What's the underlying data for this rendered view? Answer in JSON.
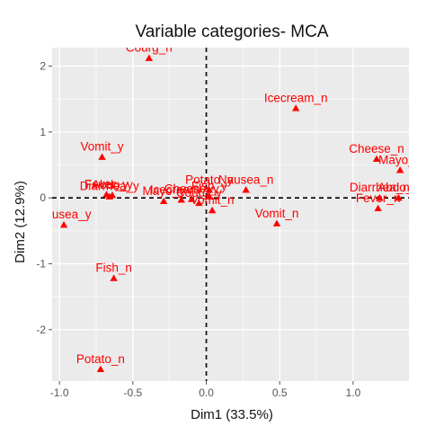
{
  "chart_data": {
    "type": "scatter",
    "title": "Variable categories- MCA",
    "xlabel": "Dim1 (33.5%)",
    "ylabel": "Dim2 (12.9%)",
    "xlim": [
      -1.05,
      1.38
    ],
    "ylim": [
      -2.78,
      2.28
    ],
    "x_ticks": [
      -1.0,
      -0.5,
      0.0,
      0.5,
      1.0
    ],
    "x_tick_labels": [
      "-1.0",
      "-0.5",
      "0.0",
      "0.5",
      "1.0"
    ],
    "y_ticks": [
      -2,
      -1,
      0,
      1,
      2
    ],
    "y_tick_labels": [
      "-2",
      "-1",
      "0",
      "1",
      "2"
    ],
    "grid": true,
    "reference_lines": {
      "x": 0,
      "y": 0,
      "style": "dashed"
    },
    "marker": "triangle",
    "colors": {
      "points": "#ff0000",
      "panel": "#ebebeb",
      "grid": "#ffffff",
      "reference": "#000000"
    },
    "points": [
      {
        "label": "Courg_n",
        "x": -0.39,
        "y": 2.12
      },
      {
        "label": "Icecream_n",
        "x": 0.61,
        "y": 1.36
      },
      {
        "label": "Vomit_y",
        "x": -0.71,
        "y": 0.62
      },
      {
        "label": "Cheese_n",
        "x": 1.16,
        "y": 0.59
      },
      {
        "label": "Mayo_n",
        "x": 1.32,
        "y": 0.42
      },
      {
        "label": "Fever_y",
        "x": -0.68,
        "y": 0.05
      },
      {
        "label": "Diarrhea_y",
        "x": -0.66,
        "y": 0.02
      },
      {
        "label": "Abdo_y",
        "x": -0.64,
        "y": 0.04
      },
      {
        "label": "Mayo_y",
        "x": -0.29,
        "y": -0.05
      },
      {
        "label": "Icecream_y",
        "x": -0.17,
        "y": -0.03
      },
      {
        "label": "Cheese_y",
        "x": -0.1,
        "y": -0.02
      },
      {
        "label": "Potato_y",
        "x": 0.02,
        "y": 0.12
      },
      {
        "label": "Fish_y",
        "x": 0.02,
        "y": 0.02
      },
      {
        "label": "Nausea_n",
        "x": 0.27,
        "y": 0.12
      },
      {
        "label": "Courg_y",
        "x": -0.05,
        "y": -0.08
      },
      {
        "label": "Vomit_n",
        "x": 0.04,
        "y": -0.19
      },
      {
        "label": "Diarrhea_n",
        "x": 1.18,
        "y": 0.0
      },
      {
        "label": "Fever_n",
        "x": 1.17,
        "y": -0.16
      },
      {
        "label": "Abdo_n",
        "x": 1.31,
        "y": 0.0
      },
      {
        "label": "Vomit_n",
        "x": 0.48,
        "y": -0.39
      },
      {
        "label": "Nausea_y",
        "x": -0.97,
        "y": -0.41
      },
      {
        "label": "Fish_n",
        "x": -0.63,
        "y": -1.22
      },
      {
        "label": "Potato_n",
        "x": -0.72,
        "y": -2.6
      }
    ]
  }
}
